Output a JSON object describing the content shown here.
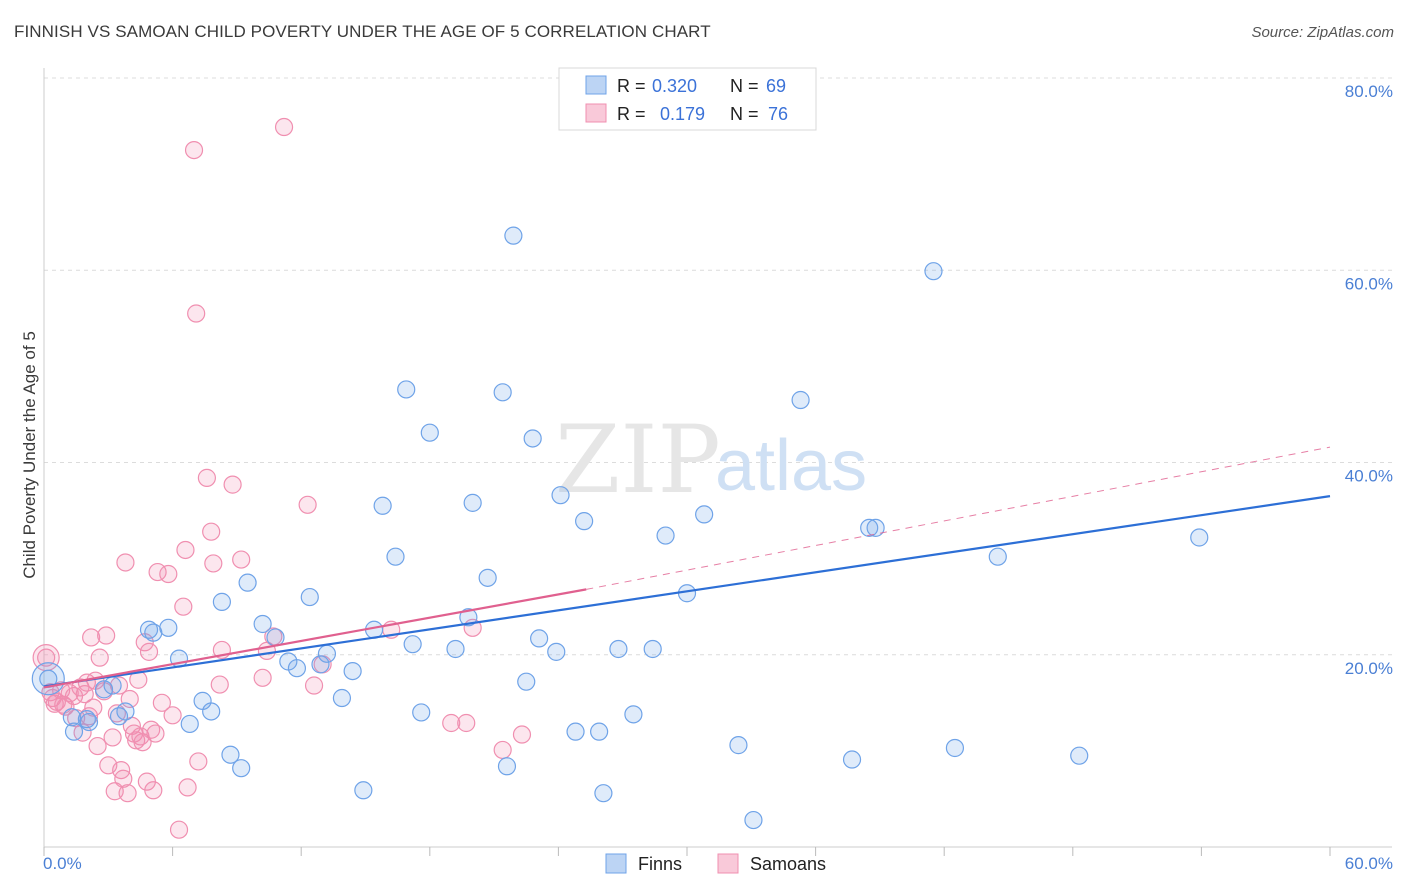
{
  "header": {
    "title": "FINNISH VS SAMOAN CHILD POVERTY UNDER THE AGE OF 5 CORRELATION CHART",
    "source": "Source: ZipAtlas.com"
  },
  "watermark": {
    "zip": "ZIP",
    "atlas": "atlas"
  },
  "legend": {
    "r_label": "R =",
    "n_label": "N =",
    "finns": {
      "r": "0.320",
      "n": "69"
    },
    "samoans": {
      "r": "0.179",
      "n": "76"
    }
  },
  "colors": {
    "finns": "#6fa3e8",
    "finns_line": "#2d6fd6",
    "samoans": "#f08fb0",
    "samoans_line": "#e0608f",
    "grid": "#dcdcdc",
    "tick_text": "#4a7fd4"
  },
  "chart_data": {
    "type": "scatter",
    "title": "FINNISH VS SAMOAN CHILD POVERTY UNDER THE AGE OF 5 CORRELATION CHART",
    "ylabel": "Child Poverty Under the Age of 5",
    "xlabel": "",
    "xlim": [
      0,
      60
    ],
    "ylim": [
      0,
      80
    ],
    "x_tick_labels": [
      "0.0%",
      "60.0%"
    ],
    "y_ticks": [
      20,
      40,
      60,
      80
    ],
    "y_tick_labels": [
      "20.0%",
      "40.0%",
      "60.0%",
      "80.0%"
    ],
    "grid": true,
    "legend_position": "top-center",
    "series": [
      {
        "name": "Finns",
        "r": 0.32,
        "n": 69,
        "trend": {
          "x0": 0,
          "y0": 16.7,
          "x1": 60,
          "y1": 36.5
        },
        "points": [
          [
            0.2,
            17.5
          ],
          [
            1.3,
            13.5
          ],
          [
            1.4,
            12.0
          ],
          [
            2.0,
            13.3
          ],
          [
            2.1,
            13.0
          ],
          [
            2.8,
            16.4
          ],
          [
            3.2,
            16.8
          ],
          [
            3.5,
            13.6
          ],
          [
            3.8,
            14.1
          ],
          [
            4.9,
            22.6
          ],
          [
            5.1,
            22.3
          ],
          [
            5.8,
            22.8
          ],
          [
            6.3,
            19.6
          ],
          [
            6.8,
            12.8
          ],
          [
            7.4,
            15.2
          ],
          [
            7.8,
            14.1
          ],
          [
            8.3,
            25.5
          ],
          [
            8.7,
            9.6
          ],
          [
            9.2,
            8.2
          ],
          [
            9.5,
            27.5
          ],
          [
            10.2,
            23.2
          ],
          [
            10.8,
            21.8
          ],
          [
            11.4,
            19.3
          ],
          [
            11.8,
            18.6
          ],
          [
            12.4,
            26.0
          ],
          [
            12.9,
            19.0
          ],
          [
            13.2,
            20.1
          ],
          [
            13.9,
            15.5
          ],
          [
            14.4,
            18.3
          ],
          [
            14.9,
            5.9
          ],
          [
            15.4,
            22.6
          ],
          [
            15.8,
            35.5
          ],
          [
            16.4,
            30.2
          ],
          [
            16.9,
            47.6
          ],
          [
            17.2,
            21.1
          ],
          [
            17.6,
            14.0
          ],
          [
            18.0,
            43.1
          ],
          [
            19.2,
            20.6
          ],
          [
            19.8,
            23.9
          ],
          [
            20.0,
            35.8
          ],
          [
            20.7,
            28.0
          ],
          [
            21.4,
            47.3
          ],
          [
            21.6,
            8.4
          ],
          [
            21.9,
            63.6
          ],
          [
            22.5,
            17.2
          ],
          [
            22.8,
            42.5
          ],
          [
            23.1,
            21.7
          ],
          [
            23.9,
            20.3
          ],
          [
            24.1,
            36.6
          ],
          [
            24.8,
            12.0
          ],
          [
            25.2,
            33.9
          ],
          [
            25.9,
            12.0
          ],
          [
            26.1,
            5.6
          ],
          [
            26.8,
            20.6
          ],
          [
            27.5,
            13.8
          ],
          [
            28.4,
            20.6
          ],
          [
            29.0,
            32.4
          ],
          [
            30.0,
            26.4
          ],
          [
            30.8,
            34.6
          ],
          [
            32.4,
            10.6
          ],
          [
            35.3,
            46.5
          ],
          [
            37.7,
            9.1
          ],
          [
            38.5,
            33.2
          ],
          [
            38.8,
            33.2
          ],
          [
            41.5,
            59.9
          ],
          [
            42.5,
            10.3
          ],
          [
            44.5,
            30.2
          ],
          [
            48.3,
            9.5
          ],
          [
            53.9,
            32.2
          ],
          [
            33.1,
            2.8
          ]
        ]
      },
      {
        "name": "Samoans",
        "r": 0.179,
        "n": 76,
        "trend": {
          "x0": 0,
          "y0": 16.6,
          "x1": 25.3,
          "y1": 26.8
        },
        "trend_dashed": {
          "x0": 25.3,
          "y0": 26.8,
          "x1": 60,
          "y1": 41.6
        },
        "points": [
          [
            0.1,
            19.7
          ],
          [
            0.3,
            16.1
          ],
          [
            0.4,
            15.5
          ],
          [
            0.5,
            14.9
          ],
          [
            0.6,
            15.1
          ],
          [
            0.8,
            16.3
          ],
          [
            0.9,
            14.8
          ],
          [
            1.0,
            14.6
          ],
          [
            1.2,
            16.0
          ],
          [
            1.4,
            15.7
          ],
          [
            1.5,
            13.4
          ],
          [
            1.7,
            16.6
          ],
          [
            1.8,
            11.9
          ],
          [
            1.9,
            15.9
          ],
          [
            2.0,
            17.1
          ],
          [
            2.1,
            13.6
          ],
          [
            2.2,
            21.8
          ],
          [
            2.3,
            14.5
          ],
          [
            2.4,
            17.3
          ],
          [
            2.5,
            10.5
          ],
          [
            2.6,
            19.7
          ],
          [
            2.8,
            16.2
          ],
          [
            2.9,
            22.0
          ],
          [
            3.0,
            8.5
          ],
          [
            3.2,
            11.4
          ],
          [
            3.3,
            5.8
          ],
          [
            3.4,
            13.9
          ],
          [
            3.5,
            16.8
          ],
          [
            3.6,
            8.0
          ],
          [
            3.7,
            7.1
          ],
          [
            3.8,
            29.6
          ],
          [
            3.9,
            5.6
          ],
          [
            4.0,
            15.4
          ],
          [
            4.1,
            12.6
          ],
          [
            4.2,
            11.8
          ],
          [
            4.3,
            11.1
          ],
          [
            4.4,
            17.4
          ],
          [
            4.5,
            11.5
          ],
          [
            4.6,
            10.9
          ],
          [
            4.7,
            21.3
          ],
          [
            4.8,
            6.8
          ],
          [
            4.9,
            20.3
          ],
          [
            5.0,
            12.2
          ],
          [
            5.1,
            5.9
          ],
          [
            5.2,
            11.8
          ],
          [
            5.3,
            28.6
          ],
          [
            5.5,
            15.0
          ],
          [
            5.8,
            28.4
          ],
          [
            6.0,
            13.7
          ],
          [
            6.3,
            1.8
          ],
          [
            6.6,
            30.9
          ],
          [
            6.7,
            6.2
          ],
          [
            7.0,
            72.5
          ],
          [
            7.1,
            55.5
          ],
          [
            7.2,
            8.9
          ],
          [
            7.6,
            38.4
          ],
          [
            7.8,
            32.8
          ],
          [
            7.9,
            29.5
          ],
          [
            8.2,
            16.9
          ],
          [
            8.3,
            20.5
          ],
          [
            8.8,
            37.7
          ],
          [
            9.2,
            29.9
          ],
          [
            10.2,
            17.6
          ],
          [
            10.4,
            20.4
          ],
          [
            10.7,
            21.9
          ],
          [
            11.2,
            74.9
          ],
          [
            12.3,
            35.6
          ],
          [
            12.6,
            16.8
          ],
          [
            16.2,
            22.6
          ],
          [
            19.0,
            12.9
          ],
          [
            19.7,
            12.9
          ],
          [
            20.0,
            22.8
          ],
          [
            21.4,
            10.1
          ],
          [
            22.3,
            11.7
          ],
          [
            13.0,
            19.0
          ],
          [
            6.5,
            25.0
          ]
        ]
      }
    ]
  },
  "bottom_legend": {
    "finns": "Finns",
    "samoans": "Samoans"
  }
}
